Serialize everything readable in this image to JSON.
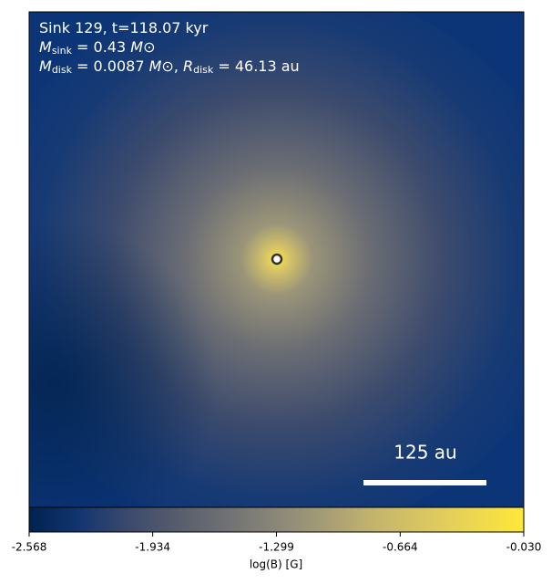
{
  "chart_data": {
    "type": "image",
    "annotation_lines": [
      [
        "Sink 129, t=118.07 kyr"
      ],
      [
        "M",
        "sink",
        " = 0.43 ",
        "M",
        "⊙"
      ],
      [
        "M",
        "disk",
        " = 0.0087 ",
        "M",
        "⊙",
        ", ",
        "R",
        "disk",
        " = 46.13 au"
      ]
    ],
    "scale_bar_label": "125 au",
    "colorbar_label": "log(B) [G]",
    "clim": [
      -2.568,
      -0.03
    ],
    "cticks": [
      -2.568,
      -1.934,
      -1.299,
      -0.664,
      {
        "value": -0.03,
        "label": "-0.030"
      }
    ]
  }
}
